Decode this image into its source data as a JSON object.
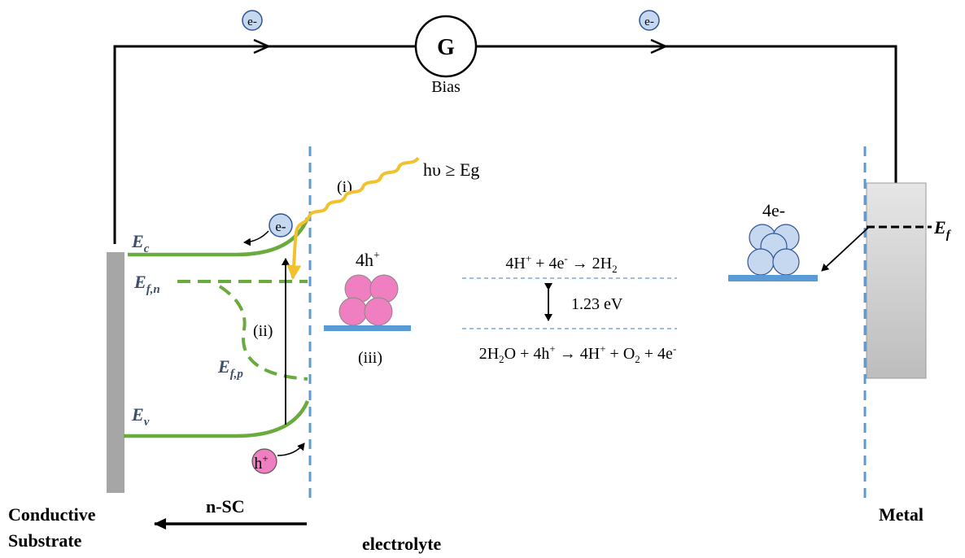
{
  "circuit": {
    "galvanometer": "G",
    "bias_label": "Bias",
    "electron_left": "e-",
    "electron_right": "e-"
  },
  "semiconductor": {
    "ec": {
      "main": "E",
      "sub": "c"
    },
    "efn": {
      "main": "E",
      "sub": "f,n"
    },
    "efp": {
      "main": "E",
      "sub": "f,p"
    },
    "ev": {
      "main": "E",
      "sub": "v"
    },
    "electron": "e-",
    "hole": {
      "main": "h",
      "sup": "+"
    },
    "step_i": "(i)",
    "step_ii": "(ii)",
    "step_iii": "(iii)",
    "photon": "hυ ≥ Eg",
    "holes_group": {
      "main": "4h",
      "sup": "+"
    }
  },
  "metal": {
    "electrons_group": "4e-",
    "ef": {
      "main": "E",
      "sub": "f"
    }
  },
  "reactions": {
    "top": {
      "p1": "4H",
      "p1sup": "+",
      "p2": " + 4e",
      "p2sup": "-",
      "p3": " → 2H",
      "p3sub": "2"
    },
    "gap": "1.23 eV",
    "bottom": {
      "p1": "2H",
      "p1sub": "2",
      "p2": "O + 4h",
      "p2sup": "+",
      "p3": " → 4H",
      "p3sup": "+",
      "p4": " + O",
      "p4sub": "2",
      "p5": " + 4e",
      "p5sup": "-"
    }
  },
  "labels": {
    "conductive_line1": "Conductive",
    "conductive_line2": "Substrate",
    "nsc": "n-SC",
    "electrolyte": "electrolyte",
    "metal": "Metal"
  },
  "colors": {
    "band_green": "#6aab3d",
    "wave_yellow": "#f2c12e",
    "hole_pink": "#ef7fc0",
    "electron_blue": "#c5d8ef",
    "interface_blue": "#5b9bd5",
    "substrate_gray": "#a6a6a6"
  }
}
